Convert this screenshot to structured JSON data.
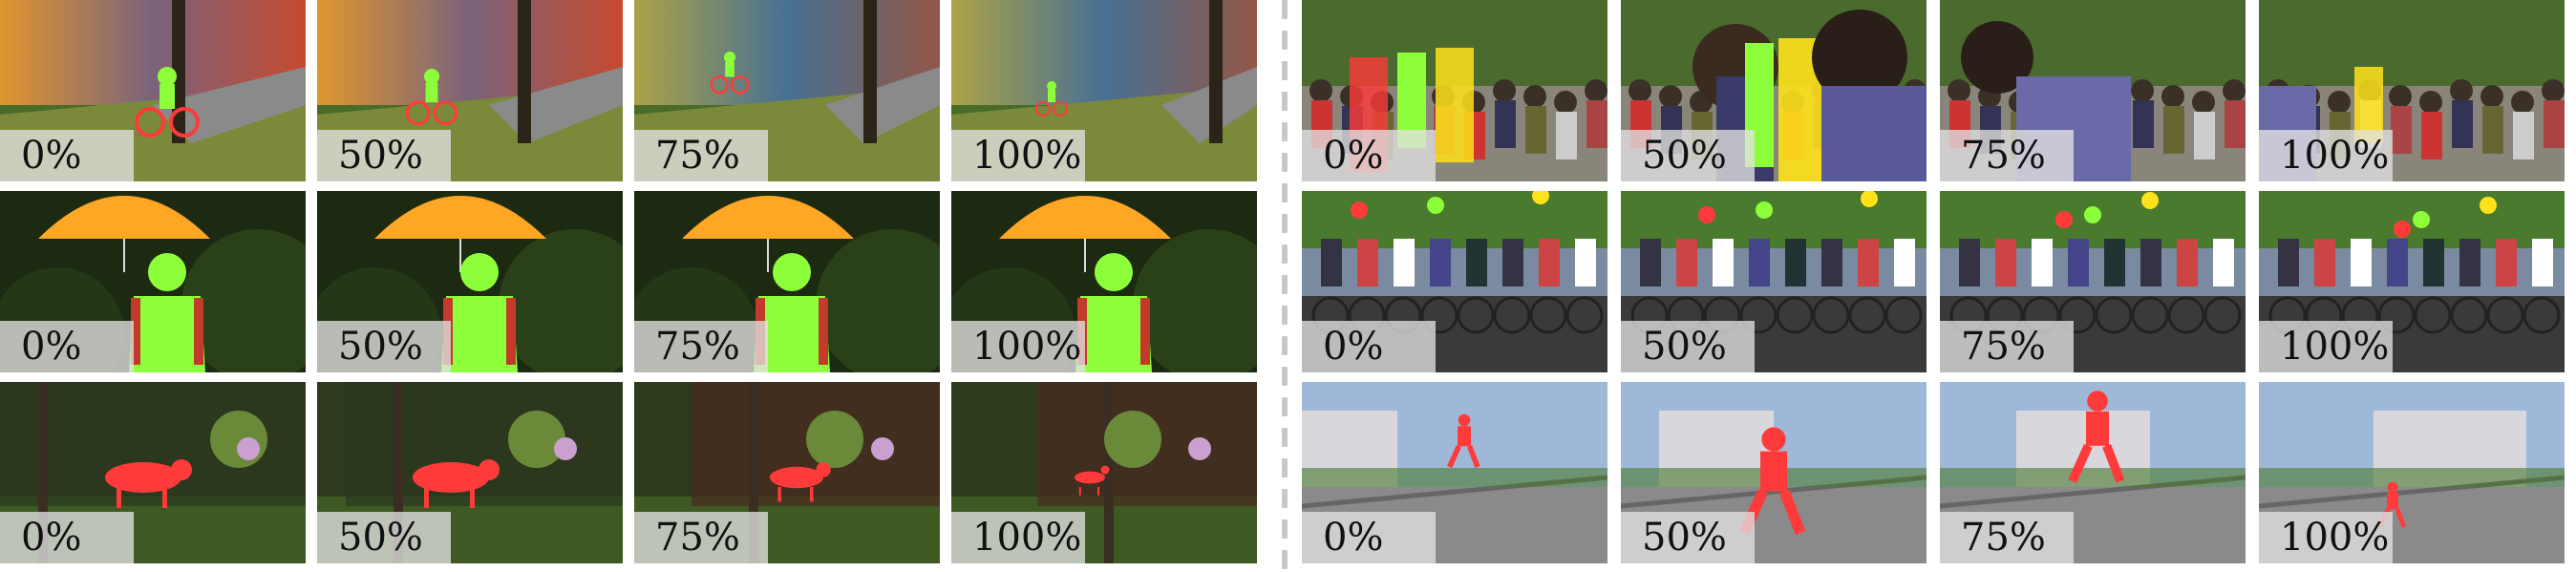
{
  "figure": {
    "rows_per_panel": 3,
    "columns_per_panel": 4,
    "mask_colors": {
      "green": "#8cff3a",
      "red": "#ff3a3a",
      "orange": "#ffa63a",
      "yellow": "#ffe21a"
    },
    "left_panel": [
      {
        "row": "cyclist-graffiti",
        "frames": [
          {
            "label": "0%"
          },
          {
            "label": "50%"
          },
          {
            "label": "75%"
          },
          {
            "label": "100%"
          }
        ]
      },
      {
        "row": "girl-umbrella",
        "frames": [
          {
            "label": "0%"
          },
          {
            "label": "50%"
          },
          {
            "label": "75%"
          },
          {
            "label": "100%"
          }
        ]
      },
      {
        "row": "fox-garden",
        "frames": [
          {
            "label": "0%"
          },
          {
            "label": "50%"
          },
          {
            "label": "75%"
          },
          {
            "label": "100%"
          }
        ]
      }
    ],
    "right_panel": [
      {
        "row": "crowd-street",
        "frames": [
          {
            "label": "0%"
          },
          {
            "label": "50%"
          },
          {
            "label": "75%"
          },
          {
            "label": "100%"
          }
        ]
      },
      {
        "row": "cyclists-race",
        "frames": [
          {
            "label": "0%"
          },
          {
            "label": "50%"
          },
          {
            "label": "75%"
          },
          {
            "label": "100%"
          }
        ]
      },
      {
        "row": "parkour-runner",
        "frames": [
          {
            "label": "0%"
          },
          {
            "label": "50%"
          },
          {
            "label": "75%"
          },
          {
            "label": "100%"
          }
        ]
      }
    ]
  }
}
